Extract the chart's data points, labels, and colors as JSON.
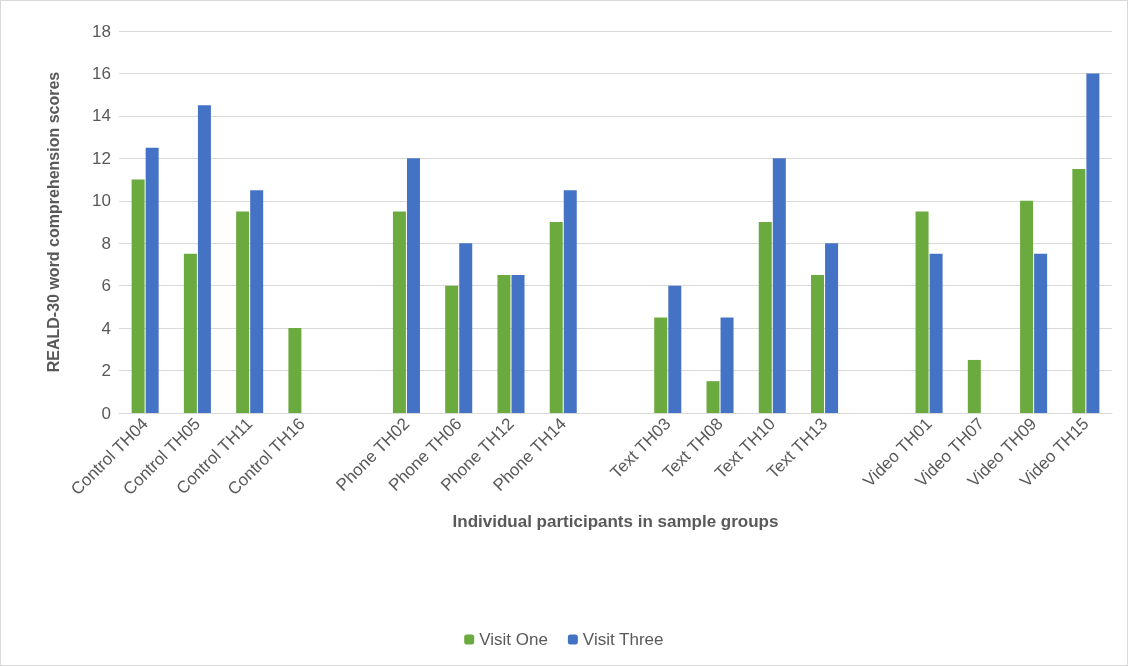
{
  "chart_data": {
    "type": "bar",
    "xlabel": "Individual participants in sample groups",
    "ylabel": "REALD-30 word comprehension scores",
    "categories": [
      "Control TH04",
      "Control TH05",
      "Control TH11",
      "Control TH16",
      null,
      "Phone TH02",
      "Phone TH06",
      "Phone TH12",
      "Phone TH14",
      null,
      "Text TH03",
      "Text TH08",
      "Text TH10",
      "Text TH13",
      null,
      "Video TH01",
      "Video TH07",
      "Video TH09",
      "Video TH15"
    ],
    "series": [
      {
        "name": "Visit One",
        "color": "#6aaa3e",
        "values": [
          11,
          7.5,
          9.5,
          4,
          null,
          9.5,
          6,
          6.5,
          9,
          null,
          4.5,
          1.5,
          9,
          6.5,
          null,
          9.5,
          2.5,
          10,
          11.5
        ]
      },
      {
        "name": "Visit Three",
        "color": "#4472c4",
        "values": [
          12.5,
          14.5,
          10.5,
          null,
          null,
          12,
          8,
          6.5,
          10.5,
          null,
          6,
          4.5,
          12,
          8,
          null,
          7.5,
          null,
          7.5,
          16
        ]
      }
    ],
    "ylim": [
      0,
      18
    ],
    "yticks": [
      0,
      2,
      4,
      6,
      8,
      10,
      12,
      14,
      16,
      18
    ],
    "grid": "y",
    "legend": "bottom"
  }
}
